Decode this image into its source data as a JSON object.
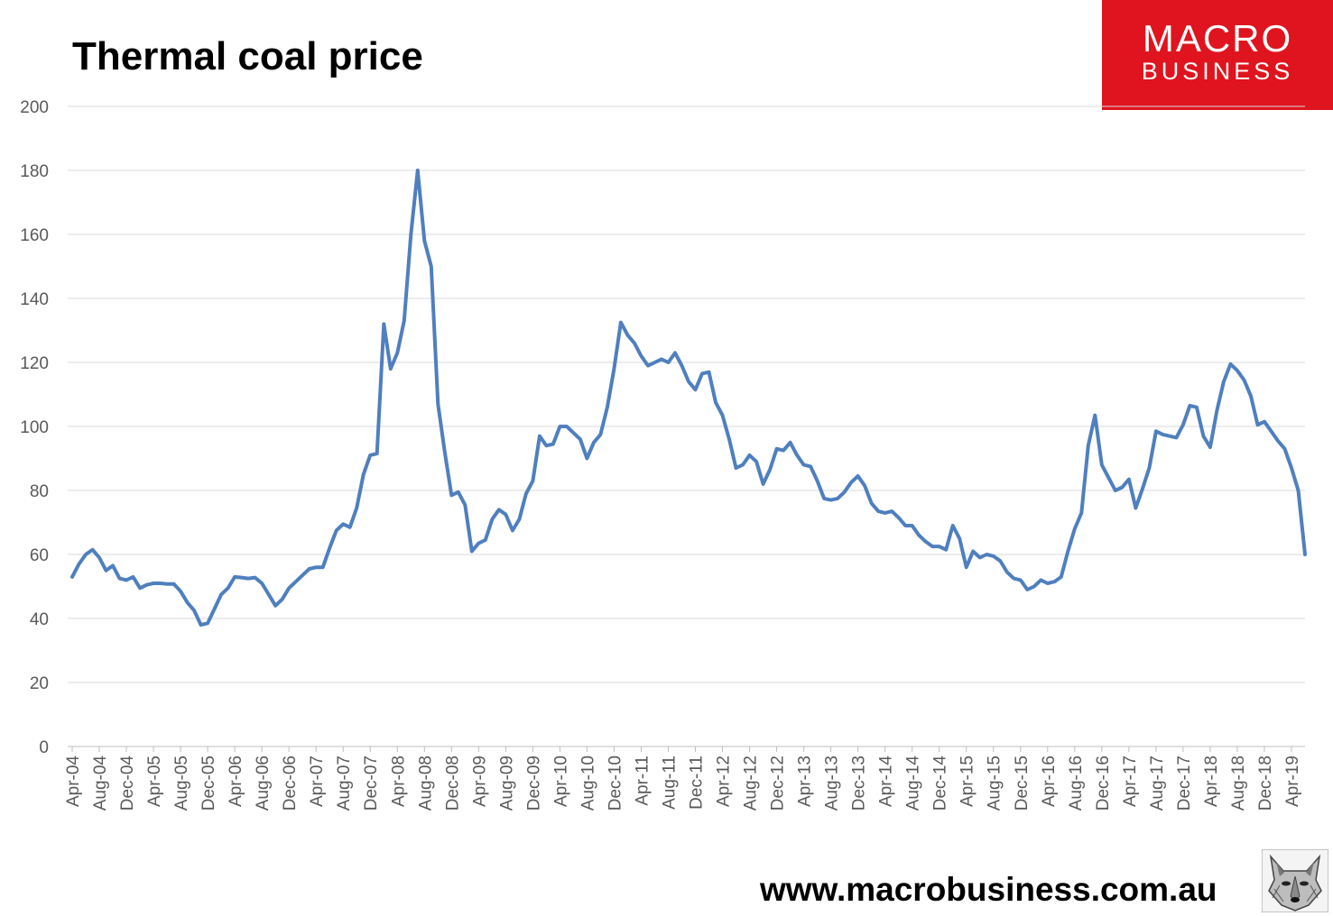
{
  "brand": {
    "line1": "MACRO",
    "line2": "BUSINESS",
    "url": "www.macrobusiness.com.au",
    "color": "#e0141e"
  },
  "chart_data": {
    "type": "line",
    "title": "Thermal coal price",
    "xlabel": "",
    "ylabel": "",
    "ylim": [
      0,
      200
    ],
    "yticks": [
      0,
      20,
      40,
      60,
      80,
      100,
      120,
      140,
      160,
      180,
      200
    ],
    "grid": true,
    "legend": "none",
    "line_color": "#4f7fbe",
    "x_tick_labels": [
      "Apr-04",
      "Aug-04",
      "Dec-04",
      "Apr-05",
      "Aug-05",
      "Dec-05",
      "Apr-06",
      "Aug-06",
      "Dec-06",
      "Apr-07",
      "Aug-07",
      "Dec-07",
      "Apr-08",
      "Aug-08",
      "Dec-08",
      "Apr-09",
      "Aug-09",
      "Dec-09",
      "Apr-10",
      "Aug-10",
      "Dec-10",
      "Apr-11",
      "Aug-11",
      "Dec-11",
      "Apr-12",
      "Aug-12",
      "Dec-12",
      "Apr-13",
      "Aug-13",
      "Dec-13",
      "Apr-14",
      "Aug-14",
      "Dec-14",
      "Apr-15",
      "Aug-15",
      "Dec-15",
      "Apr-16",
      "Aug-16",
      "Dec-16",
      "Apr-17",
      "Aug-17",
      "Dec-17",
      "Apr-18",
      "Aug-18",
      "Dec-18",
      "Apr-19"
    ],
    "x_start": "Apr-04",
    "x_end": "Jul-19",
    "values": [
      53,
      57,
      60,
      61.5,
      59,
      55,
      56.5,
      52.5,
      52,
      53,
      49.5,
      50.5,
      51,
      51,
      50.8,
      50.8,
      48.5,
      45,
      42.5,
      38,
      38.5,
      43,
      47.5,
      49.5,
      53,
      52.8,
      52.5,
      52.8,
      51,
      47.5,
      44,
      46,
      49.5,
      51.5,
      53.5,
      55.5,
      56,
      56,
      62,
      67.5,
      69.5,
      68.5,
      74.5,
      85,
      91,
      91.5,
      132,
      118,
      123,
      133,
      160,
      180,
      158,
      150,
      107,
      92,
      78.5,
      79.5,
      75.5,
      61,
      63.5,
      64.5,
      71,
      74,
      72.5,
      67.5,
      71,
      79,
      83,
      97,
      94,
      94.5,
      100,
      100,
      98,
      96,
      90,
      95,
      97.5,
      106,
      118,
      132.5,
      128.5,
      126,
      122,
      119,
      120,
      121,
      120,
      123,
      119,
      114,
      111.5,
      116.5,
      117,
      107.5,
      103.5,
      96,
      87,
      88,
      91,
      89,
      82,
      86.5,
      93,
      92.5,
      95,
      91,
      88,
      87.5,
      83,
      77.5,
      77,
      77.5,
      79.5,
      82.5,
      84.5,
      81.5,
      76,
      73.5,
      73,
      73.5,
      71.5,
      69,
      69,
      66,
      64,
      62.5,
      62.5,
      61.5,
      69,
      65,
      56,
      61,
      59,
      60,
      59.5,
      58,
      54.5,
      52.5,
      52,
      49,
      50,
      52,
      51,
      51.5,
      53,
      61,
      68,
      73,
      94,
      103.5,
      88,
      84,
      80,
      81,
      83.5,
      74.5,
      80.5,
      87,
      98.5,
      97.5,
      97,
      96.5,
      100.5,
      106.5,
      106,
      97,
      93.5,
      105,
      114,
      119.5,
      117.5,
      114.5,
      109.5,
      100.5,
      101.5,
      98.5,
      95.5,
      93,
      87,
      80,
      60
    ]
  }
}
